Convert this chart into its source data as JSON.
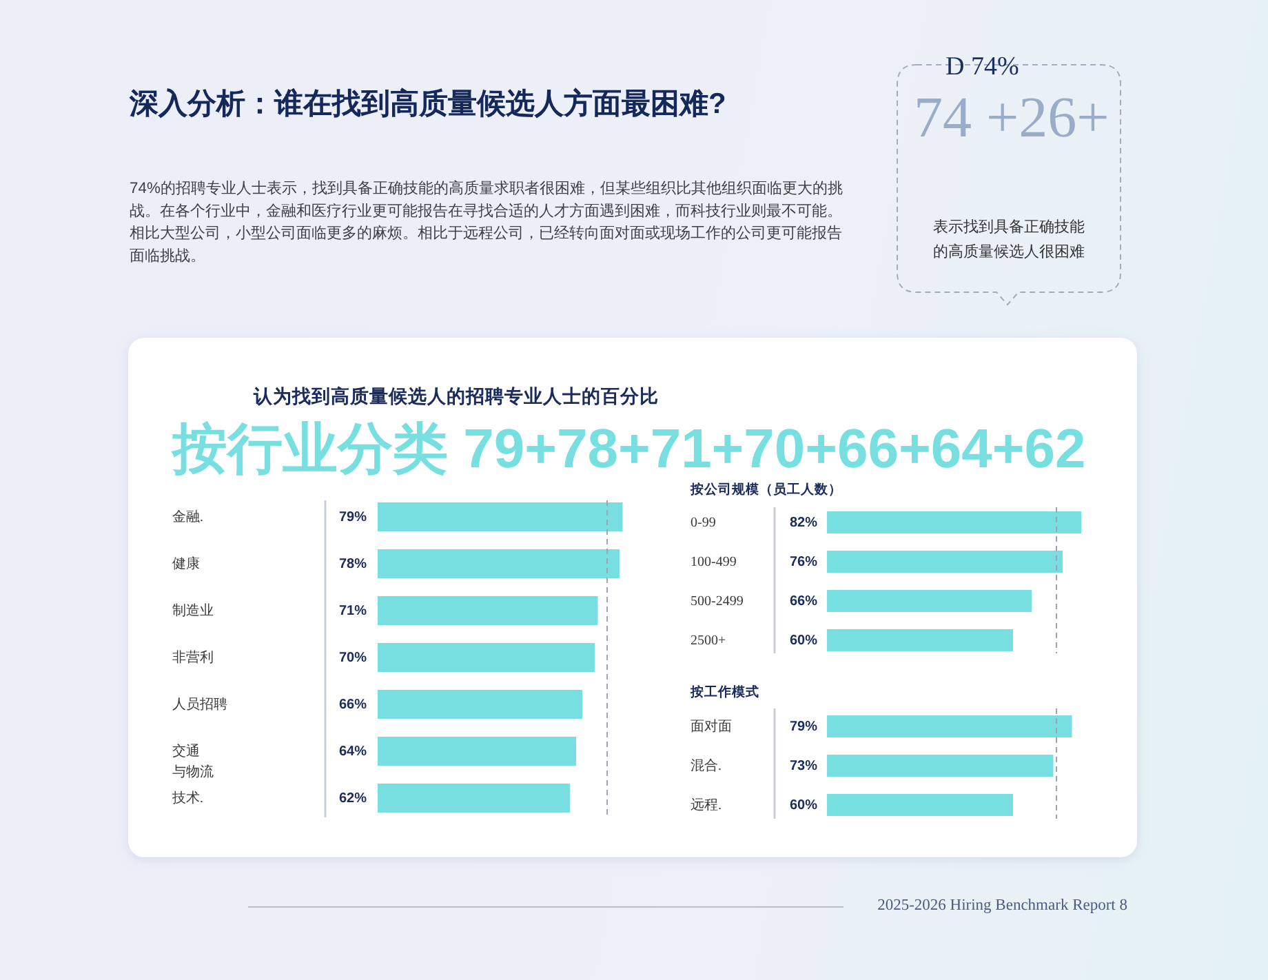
{
  "chart_data": [
    {
      "type": "other",
      "title": "深入分析：谁在找到高质量候选人方面最困难?",
      "subtitle": "74%的招聘专业人士表示，找到具备正确技能的高质量求职者很困难，但某些组织比其他组织面临更大的挑战。在各个行业中，金融和医疗行业更可能报告在寻找合适的人才方面遇到困难，而科技行业则最不可能。相比大型公司，小型公司面临更多的麻烦。相比于远程公司，已经转向面对面或现场工作的公司更可能报告面临挑战。",
      "annotations": [
        "2025-2026 Hiring Benchmark Report 8"
      ]
    },
    {
      "type": "other",
      "annotations": [
        "D 74%",
        "74 +26+",
        "表示找到具备正确技能的高质量候选人很困难"
      ]
    },
    {
      "type": "bar",
      "orientation": "horizontal",
      "title": "认为找到高质量候选人的招聘专业人士的百分比",
      "subtitle": "按行业分类 79+78+71+70+66+64+62",
      "categories": [
        "金融.",
        "健康",
        "制造业",
        "非营利",
        "人员招聘",
        "交通与物流",
        "技术."
      ],
      "values": [
        79,
        78,
        71,
        70,
        66,
        64,
        62
      ],
      "value_labels": [
        "79%",
        "78%",
        "71%",
        "70%",
        "66%",
        "64%",
        "62%"
      ],
      "color": "#78dfe0",
      "ref_lines": [
        {
          "axis": "x",
          "value": 74,
          "color": "#9ca3b4",
          "line_style": "dashed"
        }
      ]
    },
    {
      "type": "bar",
      "orientation": "horizontal",
      "title": "按公司规模（员工人数）",
      "categories": [
        "0-99",
        "100-499",
        "500-2499",
        "2500+"
      ],
      "values": [
        82,
        76,
        66,
        60
      ],
      "value_labels": [
        "82%",
        "76%",
        "66%",
        "60%"
      ],
      "color": "#78dfe0",
      "ref_lines": [
        {
          "axis": "x",
          "value": 74,
          "color": "#9ca3b4",
          "line_style": "dashed"
        }
      ]
    },
    {
      "type": "bar",
      "orientation": "horizontal",
      "title": "按工作模式",
      "categories": [
        "面对面",
        "混合.",
        "远程."
      ],
      "values": [
        79,
        73,
        60
      ],
      "value_labels": [
        "79%",
        "73%",
        "60%"
      ],
      "color": "#78dfe0",
      "ref_lines": [
        {
          "axis": "x",
          "value": 74,
          "color": "#9ca3b4",
          "line_style": "dashed"
        }
      ]
    }
  ]
}
